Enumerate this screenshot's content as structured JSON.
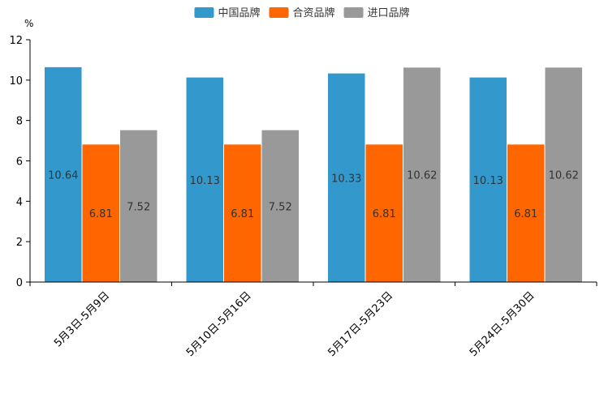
{
  "chart_data": {
    "type": "bar",
    "unit": "%",
    "categories": [
      "5月3日-5月9日",
      "5月10日-5月16日",
      "5月17日-5月23日",
      "5月24日-5月30日"
    ],
    "series": [
      {
        "name": "中国品牌",
        "color": "#3399CC",
        "values": [
          10.64,
          10.13,
          10.33,
          10.13
        ],
        "labels": [
          "10.64",
          "10.13",
          "10.33",
          "10.13"
        ]
      },
      {
        "name": "合资品牌",
        "color": "#FF6600",
        "values": [
          6.81,
          6.81,
          6.81,
          6.81
        ],
        "labels": [
          "6.81",
          "6.81",
          "6.81",
          "6.81"
        ]
      },
      {
        "name": "进口品牌",
        "color": "#999999",
        "values": [
          7.52,
          7.52,
          10.62,
          10.62
        ],
        "labels": [
          "7.52",
          "7.52",
          "10.62",
          "10.62"
        ]
      }
    ],
    "ylim": [
      0,
      12
    ],
    "yticks": [
      0,
      2,
      4,
      6,
      8,
      10,
      12
    ],
    "ytick_labels": [
      "0",
      "2",
      "4",
      "6",
      "8",
      "10",
      "12"
    ],
    "legend_position": "top-center",
    "grid": false
  }
}
